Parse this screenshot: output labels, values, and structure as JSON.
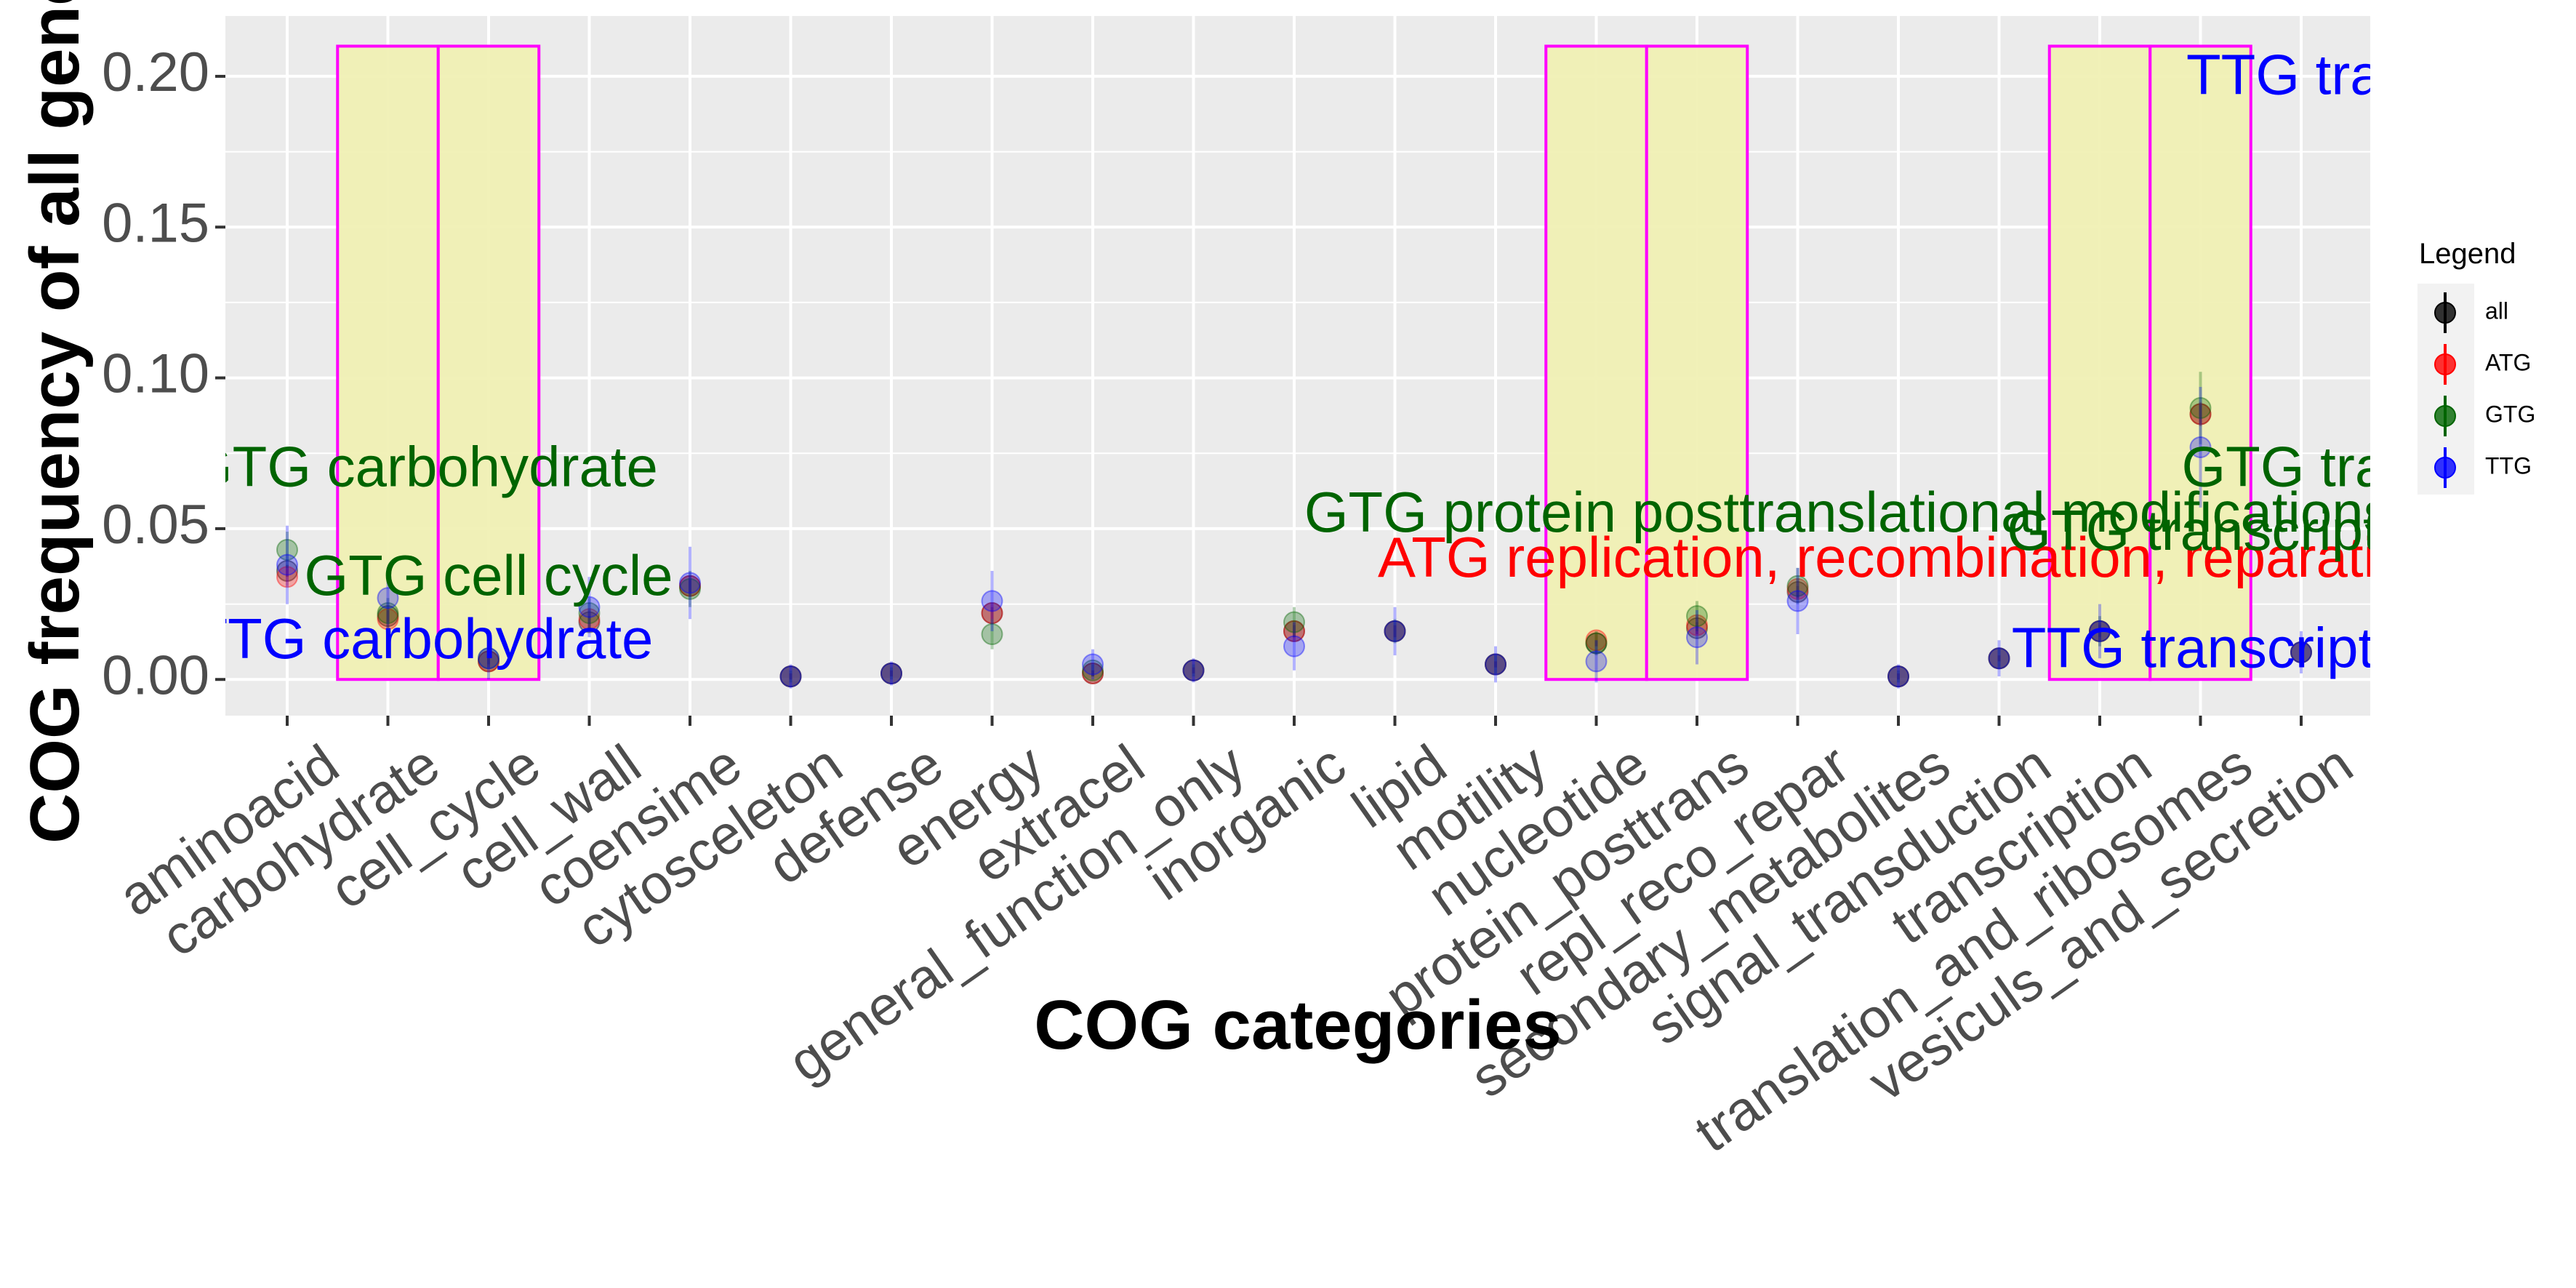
{
  "chart_data": {
    "type": "scatter",
    "xlabel": "COG categories",
    "ylabel": "COG frequency of all genes",
    "ylim": [
      -0.012,
      0.22
    ],
    "yticks": [
      "0.00",
      "0.05",
      "0.10",
      "0.15",
      "0.20"
    ],
    "grid": true,
    "categories": [
      "aminoacid",
      "carbohydrate",
      "cell_cycle",
      "cell_wall",
      "coensime",
      "cytosceleton",
      "defense",
      "energy",
      "extracel",
      "general_function_only",
      "inorganic",
      "lipid",
      "motility",
      "nucleotide",
      "protein_posttrans",
      "repl_reco_repar",
      "secondary_metabolites",
      "signal_transduction",
      "transcription",
      "translation_and_ribosomes",
      "vesiculs_and_secretion"
    ],
    "legend": {
      "title": "Legend",
      "position": "right"
    },
    "colors": {
      "all": "#000000",
      "ATG": "#ff0000",
      "GTG": "#006400",
      "TTG": "#0000ff",
      "box_fill": "#f0f0b4",
      "box_stroke": "#ff00ff"
    },
    "series": [
      {
        "name": "all",
        "values": [
          0.036,
          0.021,
          0.006,
          0.019,
          0.031,
          0.001,
          0.002,
          0.022,
          0.002,
          0.003,
          0.016,
          0.016,
          0.005,
          0.012,
          0.017,
          0.029,
          0.001,
          0.007,
          0.016,
          0.088,
          0.009
        ],
        "err": [
          0.002,
          0.002,
          0.001,
          0.002,
          0.002,
          0.001,
          0.001,
          0.002,
          0.001,
          0.001,
          0.002,
          0.002,
          0.001,
          0.001,
          0.002,
          0.002,
          0.001,
          0.001,
          0.002,
          0.003,
          0.001
        ]
      },
      {
        "name": "ATG",
        "values": [
          0.034,
          0.02,
          0.006,
          0.02,
          0.031,
          0.001,
          0.002,
          0.022,
          0.002,
          0.003,
          0.016,
          0.016,
          0.005,
          0.013,
          0.018,
          0.03,
          0.001,
          0.007,
          0.016,
          0.088,
          0.009
        ],
        "err": [
          0.003,
          0.003,
          0.002,
          0.003,
          0.003,
          0.001,
          0.001,
          0.003,
          0.001,
          0.001,
          0.003,
          0.002,
          0.001,
          0.002,
          0.003,
          0.003,
          0.001,
          0.001,
          0.003,
          0.004,
          0.001
        ]
      },
      {
        "name": "GTG",
        "values": [
          0.043,
          0.022,
          0.007,
          0.022,
          0.03,
          0.001,
          0.002,
          0.015,
          0.003,
          0.003,
          0.019,
          0.016,
          0.005,
          0.012,
          0.021,
          0.031,
          0.001,
          0.007,
          0.016,
          0.09,
          0.009
        ],
        "err": [
          0.006,
          0.005,
          0.003,
          0.005,
          0.006,
          0.002,
          0.002,
          0.005,
          0.002,
          0.002,
          0.005,
          0.004,
          0.003,
          0.004,
          0.005,
          0.006,
          0.002,
          0.003,
          0.005,
          0.012,
          0.003
        ]
      },
      {
        "name": "TTG",
        "values": [
          0.038,
          0.027,
          0.007,
          0.024,
          0.032,
          0.001,
          0.002,
          0.026,
          0.005,
          0.003,
          0.011,
          0.016,
          0.005,
          0.006,
          0.014,
          0.026,
          0.001,
          0.007,
          0.016,
          0.077,
          0.009
        ],
        "err": [
          0.013,
          0.01,
          0.007,
          0.01,
          0.012,
          0.004,
          0.004,
          0.01,
          0.005,
          0.004,
          0.008,
          0.008,
          0.006,
          0.007,
          0.009,
          0.011,
          0.004,
          0.006,
          0.009,
          0.02,
          0.007
        ]
      }
    ],
    "highlight_boxes": [
      {
        "from": "carbohydrate",
        "to": "cell_cycle",
        "ymin": 0.0,
        "ymax": 0.21
      },
      {
        "from": "nucleotide",
        "to": "protein_posttrans",
        "ymin": 0.0,
        "ymax": 0.21
      },
      {
        "from": "transcription",
        "to": "translation_and_ribosomes",
        "ymin": 0.0,
        "ymax": 0.21
      }
    ],
    "annotations": [
      {
        "text": "GTG carbohydrate",
        "x": 1.35,
        "y": 0.069,
        "series": "GTG"
      },
      {
        "text": "GTG cell cycle",
        "x": 2.0,
        "y": 0.033,
        "series": "GTG"
      },
      {
        "text": "TTG carbohydrate",
        "x": 1.35,
        "y": 0.012,
        "series": "TTG"
      },
      {
        "text": "GTG protein posttranslational modifications",
        "x": 15.5,
        "y": 0.054,
        "series": "GTG"
      },
      {
        "text": "ATG replication, recombination, reparation",
        "x": 16.1,
        "y": 0.039,
        "series": "ATG"
      },
      {
        "text": "GTG transcription",
        "x": 19.3,
        "y": 0.048,
        "series": "GTG"
      },
      {
        "text": "TTG transcription",
        "x": 19.3,
        "y": 0.009,
        "series": "TTG"
      },
      {
        "text": "TTG translation",
        "x": 20.8,
        "y": 0.199,
        "series": "TTG"
      },
      {
        "text": "GTG translation",
        "x": 20.8,
        "y": 0.069,
        "series": "GTG"
      }
    ]
  }
}
